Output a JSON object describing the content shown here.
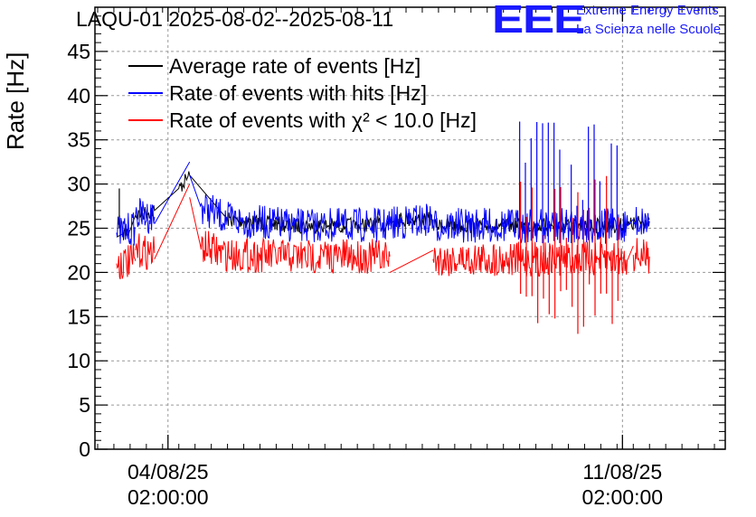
{
  "title": "LAQU-01 2025-08-02--2025-08-11",
  "logo": {
    "mark": "EEE",
    "line1": "Extreme Energy Events",
    "line2": "La Scienza nelle Scuole",
    "color": "#1a1aff"
  },
  "chart_data": {
    "type": "line",
    "title": "LAQU-01 2025-08-02--2025-08-11",
    "xlabel": "",
    "ylabel": "Rate [Hz]",
    "ylim": [
      0,
      50
    ],
    "xlim": [
      "2025-08-02 23:00",
      "2025-08-12 16:00"
    ],
    "yticks": [
      0,
      5,
      10,
      15,
      20,
      25,
      30,
      35,
      40,
      45
    ],
    "xticks": [
      {
        "t": "2025-08-04 02:00",
        "label_line1": "04/08/25",
        "label_line2": "02:00:00"
      },
      {
        "t": "2025-08-11 02:00",
        "label_line1": "11/08/25",
        "label_line2": "02:00:00"
      }
    ],
    "grid": true,
    "legend": "top-left",
    "series": [
      {
        "name": "Average rate of events [Hz]",
        "color": "#000000",
        "segments": [
          {
            "x": [
              "2025-08-03 07:00",
              "2025-08-03 09:00",
              "2025-08-03 12:00",
              "2025-08-03 14:00",
              "2025-08-03 21:00",
              "2025-08-04 06:00",
              "2025-08-04 10:00"
            ],
            "y": [
              24.0,
              24.3,
              24.8,
              26.5,
              27.0,
              29.5,
              31.0
            ]
          },
          {
            "x": [
              "2025-08-04 10:00",
              "2025-08-05 00:00",
              "2025-08-06 00:00",
              "2025-08-07 00:00",
              "2025-08-07 12:00"
            ],
            "y": [
              31.0,
              26.0,
              25.3,
              25.3,
              25.5
            ]
          },
          {
            "x": [
              "2025-08-07 12:00",
              "2025-08-08 04:00"
            ],
            "y": [
              26.0,
              26.0
            ]
          },
          {
            "x": [
              "2025-08-08 04:00",
              "2025-08-09 00:00",
              "2025-08-10 00:00",
              "2025-08-11 04:00",
              "2025-08-11 12:00"
            ],
            "y": [
              25.3,
              25.3,
              25.3,
              25.3,
              26.0
            ]
          }
        ]
      },
      {
        "name": "Rate of events with hits [Hz]",
        "color": "#0000ff",
        "segments": [
          {
            "x": [
              "2025-08-03 07:00",
              "2025-08-03 14:00"
            ],
            "y": [
              24.5,
              25.0
            ]
          },
          {
            "x": [
              "2025-08-03 14:00",
              "2025-08-03 21:00"
            ],
            "y": [
              26.5,
              26.3
            ]
          },
          {
            "x": [
              "2025-08-03 21:00",
              "2025-08-04 10:00"
            ],
            "y": [
              25.5,
              32.5
            ]
          },
          {
            "x": [
              "2025-08-04 10:00",
              "2025-08-04 14:00",
              "2025-08-05 00:00",
              "2025-08-06 00:00",
              "2025-08-07 12:00"
            ],
            "y": [
              31.0,
              27.5,
              26.0,
              25.3,
              25.3
            ]
          },
          {
            "x": [
              "2025-08-07 12:00",
              "2025-08-08 04:00"
            ],
            "y": [
              25.5,
              26.0
            ]
          },
          {
            "x": [
              "2025-08-08 04:00",
              "2025-08-11 04:00",
              "2025-08-11 06:00"
            ],
            "y": [
              25.3,
              25.3,
              26.0
            ]
          },
          {
            "x": [
              "2025-08-11 06:00",
              "2025-08-11 12:00"
            ],
            "y": [
              25.8,
              25.8
            ]
          }
        ]
      },
      {
        "name": "Rate of events with χ² < 10.0 [Hz]",
        "color": "#ff0000",
        "segments": [
          {
            "x": [
              "2025-08-03 07:00",
              "2025-08-03 14:00"
            ],
            "y": [
              21.0,
              21.3
            ]
          },
          {
            "x": [
              "2025-08-03 14:00",
              "2025-08-03 21:00"
            ],
            "y": [
              22.5,
              22.2
            ]
          },
          {
            "x": [
              "2025-08-03 21:00",
              "2025-08-04 10:00"
            ],
            "y": [
              21.5,
              30.0
            ]
          },
          {
            "x": [
              "2025-08-04 10:00",
              "2025-08-04 14:00",
              "2025-08-05 00:00",
              "2025-08-06 00:00",
              "2025-08-07 12:00"
            ],
            "y": [
              28.5,
              23.0,
              22.0,
              21.8,
              21.8
            ]
          },
          {
            "x": [
              "2025-08-07 12:00",
              "2025-08-08 04:00"
            ],
            "y": [
              20.0,
              22.5
            ]
          },
          {
            "x": [
              "2025-08-08 04:00",
              "2025-08-11 04:00",
              "2025-08-11 06:00"
            ],
            "y": [
              21.5,
              21.5,
              23.0
            ]
          },
          {
            "x": [
              "2025-08-11 06:00",
              "2025-08-11 12:00"
            ],
            "y": [
              22.0,
              21.8
            ]
          }
        ]
      }
    ],
    "annotations": [
      {
        "series": "Average rate of events [Hz]",
        "x": "2025-08-03 08:00",
        "y": 29.5,
        "note": "spike"
      }
    ]
  }
}
